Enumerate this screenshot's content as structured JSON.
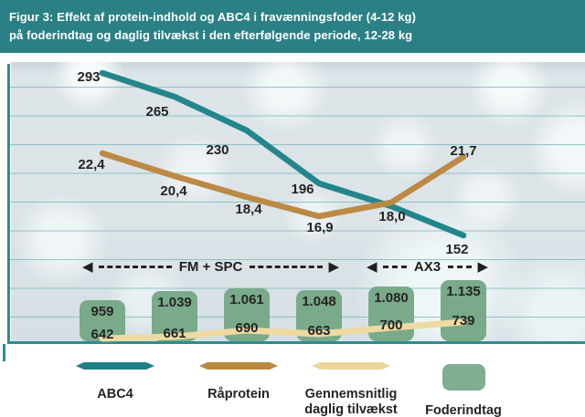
{
  "title": {
    "line1": "Figur 3: Effekt af protein-indhold og ABC4 i fravænningsfoder (4-12 kg)",
    "line2": "på foderindtag og daglig tilvækst i den efterfølgende periode, 12-28 kg"
  },
  "annotations": {
    "fm_spc": "FM + SPC",
    "ax3": "AX3"
  },
  "chart_data": {
    "type": "combo (line + bar)",
    "n_points": 6,
    "grid": "horizontal gridlines, teal axes, no tick labels",
    "groups": [
      {
        "label": "FM + SPC",
        "points": [
          1,
          2,
          3,
          4
        ]
      },
      {
        "label": "AX3",
        "points": [
          5,
          6
        ]
      }
    ],
    "series": [
      {
        "name": "ABC4",
        "type": "line",
        "color": "#23868b",
        "values": [
          293,
          265,
          230,
          196,
          null,
          152
        ],
        "labels": [
          "293",
          "265",
          "230",
          "196",
          null,
          "152"
        ]
      },
      {
        "name": "Råprotein",
        "type": "line",
        "color": "#bc8a45",
        "values": [
          22.4,
          20.4,
          18.4,
          16.9,
          18.0,
          21.7
        ],
        "labels": [
          "22,4",
          "20,4",
          "18,4",
          "16,9",
          "18,0",
          "21,7"
        ]
      },
      {
        "name": "Gennemsnitlig daglig tilvækst",
        "type": "line",
        "color": "#eedaa1",
        "values": [
          642,
          661,
          690,
          663,
          700,
          739
        ],
        "labels": [
          "642",
          "661",
          "690",
          "663",
          "700",
          "739"
        ]
      },
      {
        "name": "Foderindtag",
        "type": "bar",
        "color": "#79aa8a",
        "values": [
          959,
          1039,
          1061,
          1048,
          1080,
          1135
        ],
        "labels": [
          "959",
          "1.039",
          "1.061",
          "1.048",
          "1.080",
          "1.135"
        ]
      }
    ],
    "legend_position": "bottom"
  },
  "legend": {
    "items": [
      {
        "label": "ABC4",
        "swatch": "line",
        "color": "#1f7e86"
      },
      {
        "label": "Råprotein",
        "swatch": "line",
        "color": "#b9873f"
      },
      {
        "label_line1": "Gennemsnitlig",
        "label_line2": "daglig tilvækst",
        "swatch": "line",
        "color": "#ecd49a"
      },
      {
        "label": "Foderindtag",
        "swatch": "box",
        "color": "#7fae90"
      }
    ]
  }
}
